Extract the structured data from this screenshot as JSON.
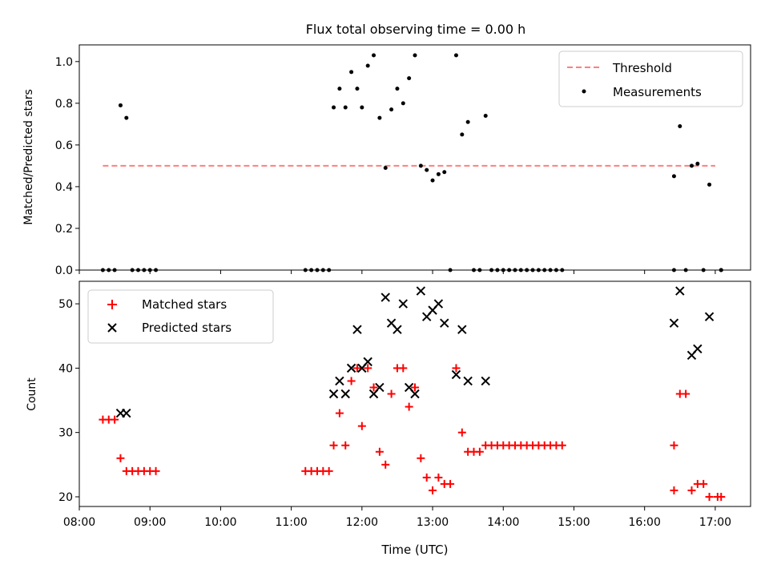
{
  "chart_data": [
    {
      "type": "scatter",
      "title": "Flux total observing time = 0.00 h",
      "ylabel": "Matched/Predicted stars",
      "xlabel": "",
      "xlim": [
        "08:00",
        "17:30"
      ],
      "ylim": [
        0,
        1.08
      ],
      "yticks": [
        "0.0",
        "0.2",
        "0.4",
        "0.6",
        "0.8",
        "1.0"
      ],
      "legend_position": "top-right",
      "threshold": {
        "name": "Threshold",
        "value": 0.5,
        "x_start": "08:20",
        "x_end": "17:00",
        "color": "#ff7f7f"
      },
      "series": [
        {
          "name": "Measurements",
          "color": "#000000",
          "points": [
            [
              "08:20",
              0
            ],
            [
              "08:25",
              0
            ],
            [
              "08:30",
              0
            ],
            [
              "08:35",
              0.79
            ],
            [
              "08:40",
              0.73
            ],
            [
              "08:45",
              0
            ],
            [
              "08:50",
              0
            ],
            [
              "08:55",
              0
            ],
            [
              "09:00",
              0
            ],
            [
              "09:05",
              0
            ],
            [
              "11:12",
              0
            ],
            [
              "11:17",
              0
            ],
            [
              "11:22",
              0
            ],
            [
              "11:27",
              0
            ],
            [
              "11:32",
              0
            ],
            [
              "11:36",
              0.78
            ],
            [
              "11:41",
              0.87
            ],
            [
              "11:46",
              0.78
            ],
            [
              "11:51",
              0.95
            ],
            [
              "11:56",
              0.87
            ],
            [
              "12:00",
              0.78
            ],
            [
              "12:05",
              0.98
            ],
            [
              "12:10",
              1.03
            ],
            [
              "12:15",
              0.73
            ],
            [
              "12:20",
              0.49
            ],
            [
              "12:25",
              0.77
            ],
            [
              "12:30",
              0.87
            ],
            [
              "12:35",
              0.8
            ],
            [
              "12:40",
              0.92
            ],
            [
              "12:45",
              1.03
            ],
            [
              "12:50",
              0.5
            ],
            [
              "12:55",
              0.48
            ],
            [
              "13:00",
              0.43
            ],
            [
              "13:05",
              0.46
            ],
            [
              "13:10",
              0.47
            ],
            [
              "13:15",
              0
            ],
            [
              "13:20",
              1.03
            ],
            [
              "13:25",
              0.65
            ],
            [
              "13:30",
              0.71
            ],
            [
              "13:35",
              0
            ],
            [
              "13:40",
              0
            ],
            [
              "13:45",
              0.74
            ],
            [
              "13:50",
              0
            ],
            [
              "13:55",
              0
            ],
            [
              "14:00",
              0
            ],
            [
              "14:05",
              0
            ],
            [
              "14:10",
              0
            ],
            [
              "14:15",
              0
            ],
            [
              "14:20",
              0
            ],
            [
              "14:25",
              0
            ],
            [
              "14:30",
              0
            ],
            [
              "14:35",
              0
            ],
            [
              "14:40",
              0
            ],
            [
              "14:45",
              0
            ],
            [
              "14:50",
              0
            ],
            [
              "16:25",
              0.45
            ],
            [
              "16:25",
              0
            ],
            [
              "16:30",
              0.69
            ],
            [
              "16:35",
              0
            ],
            [
              "16:40",
              0.5
            ],
            [
              "16:45",
              0.51
            ],
            [
              "16:50",
              0
            ],
            [
              "16:55",
              0.41
            ],
            [
              "17:05",
              0
            ],
            [
              "17:05",
              0
            ]
          ]
        }
      ]
    },
    {
      "type": "scatter",
      "title": "",
      "xlabel": "Time (UTC)",
      "ylabel": "Count",
      "xlim": [
        "08:00",
        "17:30"
      ],
      "ylim": [
        18.5,
        53.5
      ],
      "xticks": [
        "08:00",
        "09:00",
        "10:00",
        "11:00",
        "12:00",
        "13:00",
        "14:00",
        "15:00",
        "16:00",
        "17:00"
      ],
      "yticks": [
        "20",
        "30",
        "40",
        "50"
      ],
      "legend_position": "top-left",
      "series": [
        {
          "name": "Matched stars",
          "marker": "plus",
          "color": "#ff0000",
          "points": [
            [
              "08:20",
              32
            ],
            [
              "08:25",
              32
            ],
            [
              "08:30",
              32
            ],
            [
              "08:35",
              26
            ],
            [
              "08:40",
              24
            ],
            [
              "08:45",
              24
            ],
            [
              "08:50",
              24
            ],
            [
              "08:55",
              24
            ],
            [
              "09:00",
              24
            ],
            [
              "09:05",
              24
            ],
            [
              "11:12",
              24
            ],
            [
              "11:17",
              24
            ],
            [
              "11:22",
              24
            ],
            [
              "11:27",
              24
            ],
            [
              "11:32",
              24
            ],
            [
              "11:36",
              28
            ],
            [
              "11:41",
              33
            ],
            [
              "11:46",
              28
            ],
            [
              "11:51",
              38
            ],
            [
              "11:56",
              40
            ],
            [
              "12:00",
              31
            ],
            [
              "12:05",
              40
            ],
            [
              "12:10",
              37
            ],
            [
              "12:15",
              27
            ],
            [
              "12:20",
              25
            ],
            [
              "12:25",
              36
            ],
            [
              "12:30",
              40
            ],
            [
              "12:35",
              40
            ],
            [
              "12:40",
              34
            ],
            [
              "12:45",
              37
            ],
            [
              "12:50",
              26
            ],
            [
              "12:55",
              23
            ],
            [
              "13:00",
              21
            ],
            [
              "13:05",
              23
            ],
            [
              "13:10",
              22
            ],
            [
              "13:15",
              22
            ],
            [
              "13:20",
              40
            ],
            [
              "13:25",
              30
            ],
            [
              "13:30",
              27
            ],
            [
              "13:35",
              27
            ],
            [
              "13:40",
              27
            ],
            [
              "13:45",
              28
            ],
            [
              "13:50",
              28
            ],
            [
              "13:55",
              28
            ],
            [
              "14:00",
              28
            ],
            [
              "14:05",
              28
            ],
            [
              "14:10",
              28
            ],
            [
              "14:15",
              28
            ],
            [
              "14:20",
              28
            ],
            [
              "14:25",
              28
            ],
            [
              "14:30",
              28
            ],
            [
              "14:35",
              28
            ],
            [
              "14:40",
              28
            ],
            [
              "14:45",
              28
            ],
            [
              "14:50",
              28
            ],
            [
              "16:25",
              28
            ],
            [
              "16:25",
              21
            ],
            [
              "16:30",
              36
            ],
            [
              "16:35",
              36
            ],
            [
              "16:40",
              21
            ],
            [
              "16:45",
              22
            ],
            [
              "16:50",
              22
            ],
            [
              "16:55",
              20
            ],
            [
              "17:02",
              20
            ],
            [
              "17:05",
              20
            ]
          ]
        },
        {
          "name": "Predicted stars",
          "marker": "x",
          "color": "#000000",
          "points": [
            [
              "08:35",
              33
            ],
            [
              "08:40",
              33
            ],
            [
              "11:36",
              36
            ],
            [
              "11:41",
              38
            ],
            [
              "11:46",
              36
            ],
            [
              "11:51",
              40
            ],
            [
              "11:56",
              46
            ],
            [
              "12:00",
              40
            ],
            [
              "12:05",
              41
            ],
            [
              "12:10",
              36
            ],
            [
              "12:15",
              37
            ],
            [
              "12:20",
              51
            ],
            [
              "12:25",
              47
            ],
            [
              "12:30",
              46
            ],
            [
              "12:35",
              50
            ],
            [
              "12:40",
              37
            ],
            [
              "12:45",
              36
            ],
            [
              "12:50",
              52
            ],
            [
              "12:55",
              48
            ],
            [
              "13:00",
              49
            ],
            [
              "13:05",
              50
            ],
            [
              "13:10",
              47
            ],
            [
              "13:20",
              39
            ],
            [
              "13:25",
              46
            ],
            [
              "13:30",
              38
            ],
            [
              "13:45",
              38
            ],
            [
              "16:25",
              47
            ],
            [
              "16:30",
              52
            ],
            [
              "16:40",
              42
            ],
            [
              "16:45",
              43
            ],
            [
              "16:55",
              48
            ]
          ]
        }
      ]
    }
  ]
}
